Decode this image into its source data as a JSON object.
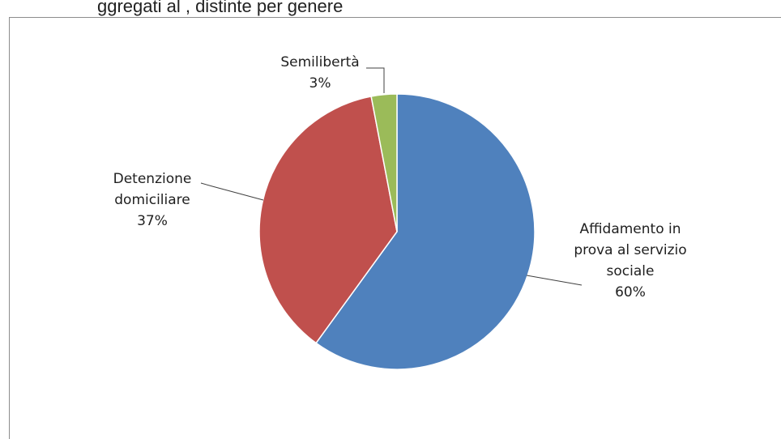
{
  "header_fragment": "ggregati al , distinte per genere",
  "chart_data": {
    "type": "pie",
    "slices": [
      {
        "label_lines": [
          "Affidamento in",
          "prova al servizio",
          "sociale"
        ],
        "value": 60,
        "percent_label": "60%",
        "color": "#4F81BD"
      },
      {
        "label_lines": [
          "Detenzione",
          "domiciliare"
        ],
        "value": 37,
        "percent_label": "37%",
        "color": "#C0504D"
      },
      {
        "label_lines": [
          "Semilibertà"
        ],
        "value": 3,
        "percent_label": "3%",
        "color": "#9BBB59"
      }
    ],
    "legend": "none",
    "data_labels": "outside with leader lines"
  }
}
